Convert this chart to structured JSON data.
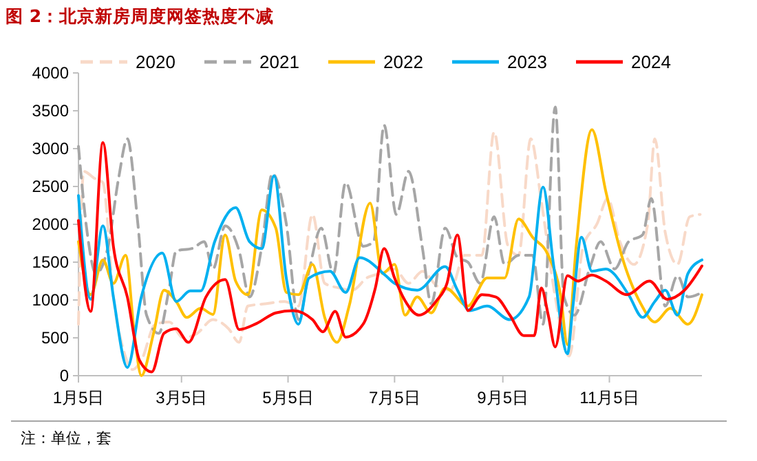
{
  "chart_data": {
    "type": "line",
    "title": "图 2：北京新房周度网签热度不减",
    "annotations": [
      "注：单位，套"
    ],
    "xlim": [
      "--01-05",
      "--12-28"
    ],
    "xticks": [
      {
        "value": "--01-05",
        "label": "1月5日"
      },
      {
        "value": "--03-05",
        "label": "3月5日"
      },
      {
        "value": "--05-05",
        "label": "5月5日"
      },
      {
        "value": "--07-05",
        "label": "7月5日"
      },
      {
        "value": "--09-05",
        "label": "9月5日"
      },
      {
        "value": "--11-05",
        "label": "11月5日"
      }
    ],
    "ylim": [
      0,
      4000
    ],
    "yticks": [
      0,
      500,
      1000,
      1500,
      2000,
      2500,
      3000,
      3500,
      4000
    ],
    "grid": false,
    "legend": "top",
    "marker": "none",
    "series": [
      {
        "name": "2020",
        "color": "#f8d9c8",
        "line_style": "dashed",
        "x": [
          "--01-05",
          "--01-08",
          "--01-14",
          "--01-19",
          "--01-25",
          "--01-31",
          "--02-05",
          "--02-10",
          "--02-18",
          "--02-26",
          "--03-06",
          "--03-14",
          "--03-23",
          "--04-01",
          "--04-07",
          "--04-12",
          "--04-22",
          "--05-03",
          "--05-11",
          "--05-19",
          "--05-26",
          "--06-03",
          "--06-11",
          "--06-19",
          "--06-27",
          "--07-05",
          "--07-13",
          "--07-21",
          "--07-29",
          "--08-06",
          "--08-14",
          "--08-24",
          "--08-31",
          "--09-08",
          "--09-14",
          "--09-21",
          "--09-27",
          "--10-05",
          "--10-13",
          "--10-21",
          "--10-29",
          "--11-04",
          "--11-11",
          "--11-19",
          "--11-27",
          "--12-01",
          "--12-07",
          "--12-14",
          "--12-21",
          "--12-27"
        ],
        "values": [
          680,
          2700,
          2610,
          2550,
          1040,
          320,
          80,
          200,
          680,
          710,
          500,
          560,
          740,
          620,
          440,
          920,
          950,
          980,
          920,
          2130,
          1220,
          1160,
          1130,
          1290,
          1350,
          1410,
          1220,
          1380,
          1190,
          1130,
          1590,
          1590,
          3220,
          1710,
          1590,
          3130,
          2310,
          1040,
          260,
          1710,
          2010,
          2340,
          1770,
          1470,
          2010,
          3130,
          1890,
          1470,
          2100,
          2130
        ]
      },
      {
        "name": "2021",
        "color": "#a6a6a6",
        "line_style": "dashed",
        "x": [
          "--01-05",
          "--01-10",
          "--01-15",
          "--01-22",
          "--01-28",
          "--02-02",
          "--02-08",
          "--02-13",
          "--02-20",
          "--02-26",
          "--03-02",
          "--03-11",
          "--03-18",
          "--03-23",
          "--03-30",
          "--04-07",
          "--04-13",
          "--04-20",
          "--04-26",
          "--05-04",
          "--05-11",
          "--05-17",
          "--05-24",
          "--05-31",
          "--06-07",
          "--06-17",
          "--06-23",
          "--06-29",
          "--07-06",
          "--07-13",
          "--07-21",
          "--07-26",
          "--08-03",
          "--08-10",
          "--08-16",
          "--08-23",
          "--08-31",
          "--09-06",
          "--09-14",
          "--09-22",
          "--09-28",
          "--10-05",
          "--10-10",
          "--10-16",
          "--10-25",
          "--10-31",
          "--11-08",
          "--11-16",
          "--11-24",
          "--11-29",
          "--12-07",
          "--12-14",
          "--12-20",
          "--12-28"
        ],
        "values": [
          3030,
          1890,
          1350,
          1710,
          2610,
          3130,
          2010,
          800,
          560,
          1160,
          1650,
          1680,
          1770,
          1410,
          1980,
          1650,
          1040,
          1710,
          2670,
          2010,
          740,
          1380,
          1950,
          1350,
          2550,
          1710,
          1770,
          3310,
          2130,
          2700,
          1680,
          950,
          1950,
          1560,
          1500,
          1220,
          2100,
          1470,
          1590,
          1590,
          680,
          3550,
          1040,
          800,
          1440,
          1770,
          1410,
          1770,
          1860,
          2340,
          920,
          1320,
          1040,
          1100
        ]
      },
      {
        "name": "2022",
        "color": "#ffc000",
        "line_style": "solid",
        "x": [
          "--01-05",
          "--01-12",
          "--01-19",
          "--01-25",
          "--02-01",
          "--02-06",
          "--02-10",
          "--02-17",
          "--02-23",
          "--03-02",
          "--03-08",
          "--03-16",
          "--03-23",
          "--03-30",
          "--04-05",
          "--04-12",
          "--04-20",
          "--04-28",
          "--05-04",
          "--05-11",
          "--05-19",
          "--05-26",
          "--06-02",
          "--06-09",
          "--06-21",
          "--06-28",
          "--07-05",
          "--07-11",
          "--07-18",
          "--07-26",
          "--08-03",
          "--08-16",
          "--08-27",
          "--09-06",
          "--09-14",
          "--09-22",
          "--10-01",
          "--10-08",
          "--10-12",
          "--10-17",
          "--10-26",
          "--11-03",
          "--11-12",
          "--11-23",
          "--12-01",
          "--12-10",
          "--12-20",
          "--12-28"
        ],
        "values": [
          1770,
          1070,
          1530,
          1220,
          1590,
          560,
          0,
          560,
          1130,
          980,
          770,
          890,
          810,
          1860,
          1250,
          1070,
          2190,
          1950,
          1100,
          1070,
          1470,
          770,
          440,
          920,
          2280,
          1350,
          1470,
          800,
          1040,
          830,
          1160,
          920,
          1290,
          1290,
          2070,
          1830,
          1590,
          1070,
          410,
          1710,
          3250,
          2430,
          1590,
          950,
          710,
          890,
          680,
          1070
        ]
      },
      {
        "name": "2023",
        "color": "#00b0f0",
        "line_style": "solid",
        "x": [
          "--01-05",
          "--01-12",
          "--01-19",
          "--01-25",
          "--02-02",
          "--02-10",
          "--02-22",
          "--03-02",
          "--03-10",
          "--03-16",
          "--03-24",
          "--04-05",
          "--04-13",
          "--04-20",
          "--04-27",
          "--05-04",
          "--05-11",
          "--05-17",
          "--05-29",
          "--06-07",
          "--06-15",
          "--06-30",
          "--07-05",
          "--07-18",
          "--08-03",
          "--08-10",
          "--08-17",
          "--08-27",
          "--09-09",
          "--09-20",
          "--09-28",
          "--10-04",
          "--10-12",
          "--10-15",
          "--10-20",
          "--10-26",
          "--11-03",
          "--11-16",
          "--11-24",
          "--12-01",
          "--12-07",
          "--12-14",
          "--12-20",
          "--12-28"
        ],
        "values": [
          2380,
          1010,
          1980,
          1040,
          110,
          1040,
          1620,
          980,
          1120,
          1120,
          1770,
          2220,
          1770,
          1680,
          2640,
          1290,
          680,
          1290,
          1380,
          1100,
          1560,
          1320,
          1220,
          1130,
          1440,
          1130,
          860,
          920,
          740,
          1040,
          2490,
          1470,
          290,
          890,
          1830,
          1380,
          1410,
          1070,
          770,
          980,
          1130,
          800,
          1350,
          1530
        ]
      },
      {
        "name": "2024",
        "color": "#ff0000",
        "line_style": "solid",
        "x": [
          "--01-05",
          "--01-12",
          "--01-19",
          "--01-25",
          "--02-02",
          "--02-09",
          "--02-16",
          "--02-23",
          "--03-02",
          "--03-09",
          "--03-19",
          "--03-30",
          "--04-07",
          "--04-17",
          "--04-28",
          "--05-08",
          "--05-19",
          "--05-25",
          "--06-01",
          "--06-07",
          "--06-17",
          "--06-24",
          "--06-29",
          "--07-05",
          "--07-11",
          "--07-19",
          "--07-29",
          "--08-04",
          "--08-10",
          "--08-16",
          "--08-24",
          "--09-01",
          "--09-09",
          "--09-17",
          "--09-23",
          "--09-27",
          "--10-01",
          "--10-05",
          "--10-12",
          "--10-18",
          "--10-26",
          "--11-03",
          "--11-15",
          "--11-28",
          "--12-08",
          "--12-18",
          "--12-28"
        ],
        "values": [
          2050,
          850,
          3080,
          1710,
          1040,
          200,
          50,
          560,
          620,
          440,
          1040,
          1270,
          610,
          690,
          830,
          860,
          740,
          580,
          850,
          510,
          680,
          1160,
          1680,
          1290,
          990,
          800,
          990,
          1220,
          1860,
          860,
          1070,
          1040,
          800,
          530,
          530,
          1160,
          800,
          380,
          1320,
          1250,
          1330,
          1250,
          1070,
          1250,
          1010,
          1130,
          1450
        ]
      }
    ]
  }
}
